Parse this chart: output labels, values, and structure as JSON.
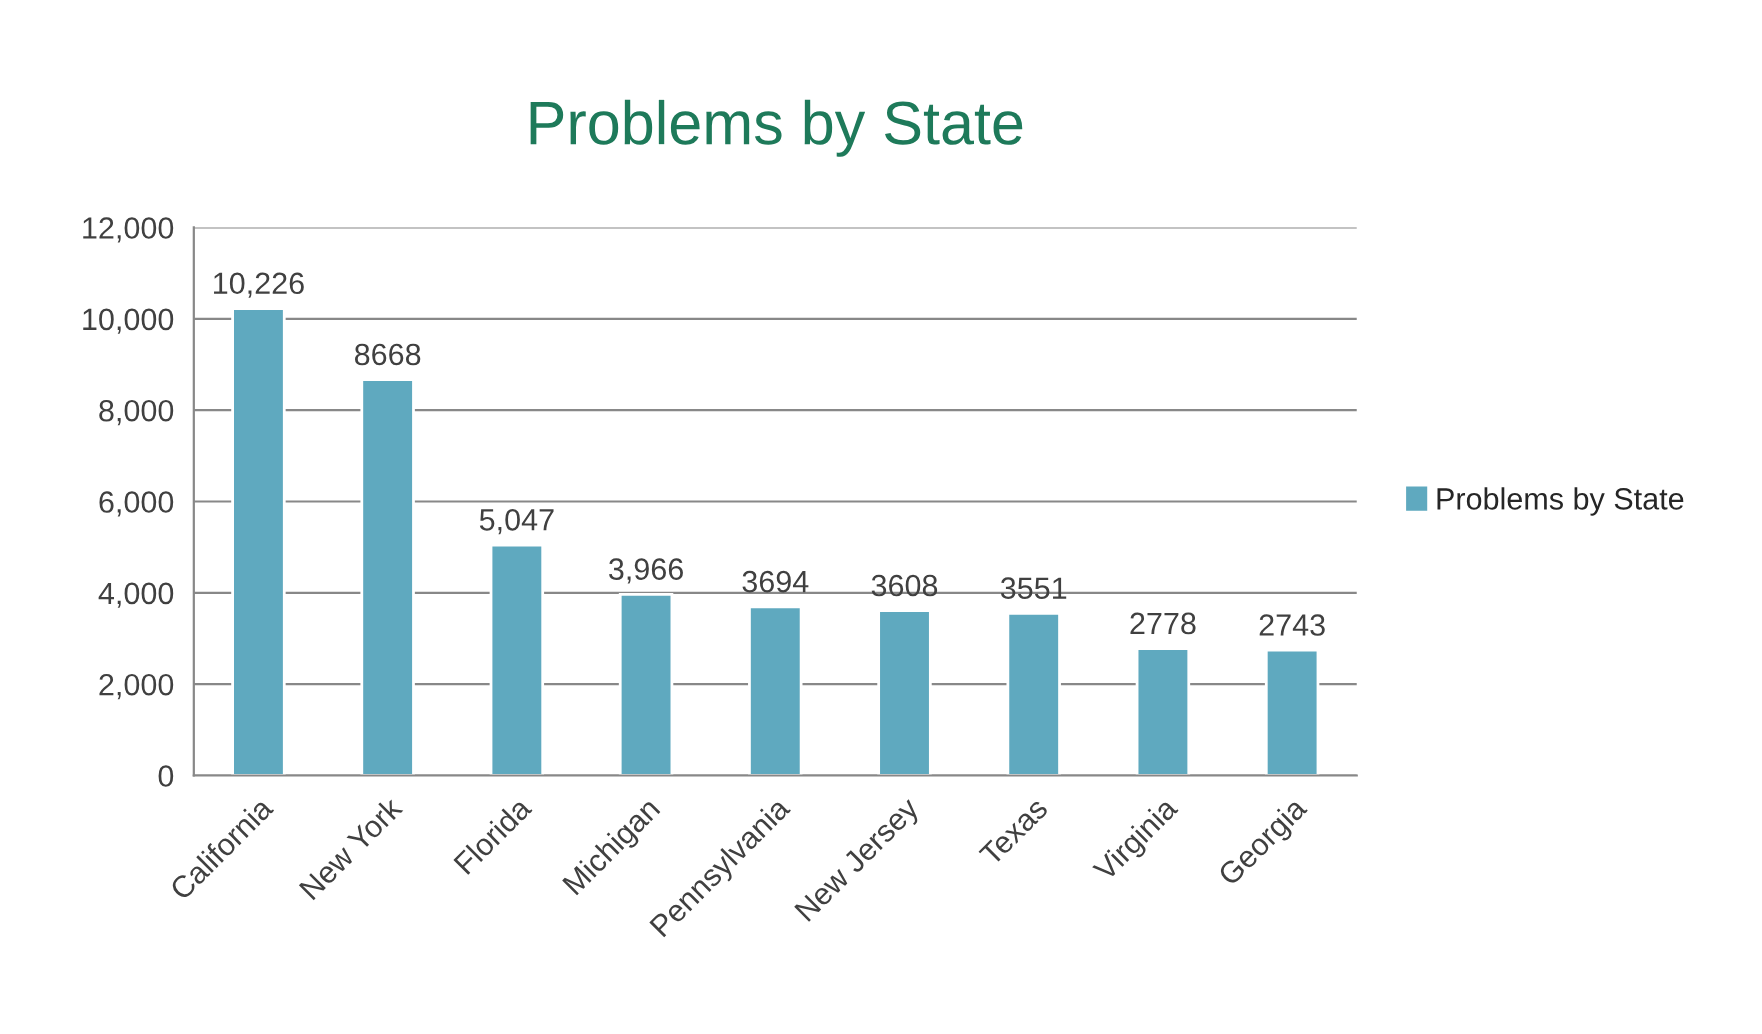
{
  "chart_data": {
    "type": "bar",
    "title": "Problems by State",
    "categories": [
      "California",
      "New York",
      "Florida",
      "Michigan",
      "Pennsylvania",
      "New Jersey",
      "Texas",
      "Virginia",
      "Georgia"
    ],
    "series": [
      {
        "name": "Problems by State",
        "color": "#5fa9bf",
        "values": [
          10226,
          8668,
          5047,
          3966,
          3694,
          3608,
          3551,
          2778,
          2743
        ]
      }
    ],
    "value_labels": [
      "10,226",
      "8668",
      "5,047",
      "3,966",
      "3694",
      "3608",
      "3551",
      "2778",
      "2743"
    ],
    "ylim": [
      0,
      12000
    ],
    "yticks": [
      {
        "value": 0,
        "label": "0"
      },
      {
        "value": 2000,
        "label": "2,000"
      },
      {
        "value": 4000,
        "label": "4,000"
      },
      {
        "value": 6000,
        "label": "6,000"
      },
      {
        "value": 8000,
        "label": "8,000"
      },
      {
        "value": 10000,
        "label": "10,000"
      },
      {
        "value": 12000,
        "label": "12,000"
      }
    ],
    "grid": "y",
    "legend": "right"
  }
}
